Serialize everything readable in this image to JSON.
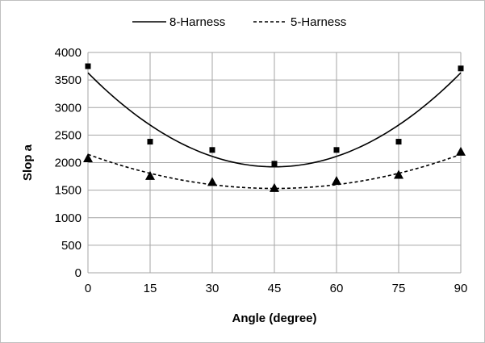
{
  "chart_data": {
    "type": "scatter",
    "xlabel": "Angle (degree)",
    "ylabel": "Slop a",
    "xlim": [
      0,
      90
    ],
    "ylim": [
      0,
      4000
    ],
    "x_ticks": [
      0,
      15,
      30,
      45,
      60,
      75,
      90
    ],
    "y_ticks": [
      0,
      500,
      1000,
      1500,
      2000,
      2500,
      3000,
      3500,
      4000
    ],
    "grid": true,
    "legend_position": "top-center",
    "series": [
      {
        "name": "8-Harness",
        "marker": "square",
        "line_style": "solid",
        "color": "#000000",
        "x": [
          0,
          15,
          30,
          45,
          60,
          75,
          90
        ],
        "y": [
          3750,
          2380,
          2230,
          1980,
          2230,
          2380,
          3710
        ],
        "trend": {
          "type": "poly2",
          "a": 0.8427,
          "b": -75.84,
          "c": 3630
        }
      },
      {
        "name": "5-Harness",
        "marker": "triangle",
        "line_style": "dashed",
        "color": "#000000",
        "x": [
          0,
          15,
          30,
          45,
          60,
          75,
          90
        ],
        "y": [
          2080,
          1760,
          1650,
          1540,
          1670,
          1780,
          2200
        ],
        "trend": {
          "type": "poly2",
          "a": 0.3057,
          "b": -27.51,
          "c": 2150
        }
      }
    ]
  }
}
